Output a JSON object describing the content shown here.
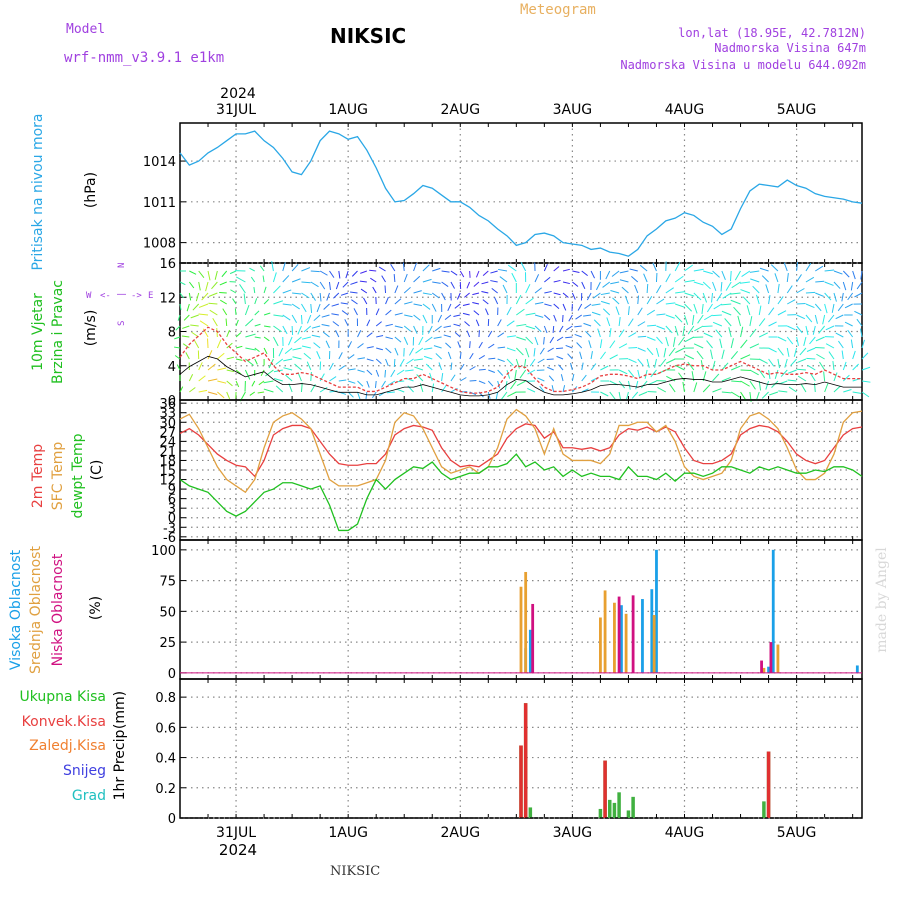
{
  "header": {
    "model_label": "Model",
    "model_name": "wrf-nmm_v3.9.1 e1km",
    "station": "NIKSIC",
    "product": "Meteogram",
    "coords": "lon,lat (18.95E, 42.7812N)",
    "elevation": "Nadmorska Visina 647m",
    "model_elevation": "Nadmorska Visina u modelu 644.092m",
    "watermark": "made by Angel",
    "footer_station": "NIKSIC"
  },
  "colors": {
    "pressure": "#2aa7e6",
    "temp2m": "#e84040",
    "sfc_temp": "#e0a040",
    "dewpoint": "#20c020",
    "cloud_high": "#1aa0e8",
    "cloud_mid": "#e8a030",
    "cloud_low": "#d01080",
    "precip_total": "#40b040",
    "precip_conv": "#e03030",
    "purple": "#a040e0",
    "orange": "#e8b060"
  },
  "time_axis": {
    "year": "2024",
    "days": [
      "31JUL",
      "1AUG",
      "2AUG",
      "3AUG",
      "4AUG",
      "5AUG"
    ],
    "day_hours": [
      12,
      36,
      60,
      84,
      108,
      132
    ],
    "range_hours": [
      0,
      146
    ]
  },
  "chart_data": [
    {
      "type": "line",
      "panel": "pressure",
      "ylabel_1": "Pritisak na nivou mora",
      "ylabel_2": "(hPa)",
      "ylim": [
        1006.5,
        1016.8
      ],
      "yticks": [
        "1008",
        "1011",
        "1014"
      ],
      "grid": true,
      "series": [
        {
          "key": "pressure",
          "x": [
            0,
            2,
            4,
            6,
            8,
            10,
            12,
            14,
            16,
            18,
            20,
            22,
            24,
            26,
            28,
            30,
            32,
            34,
            36,
            38,
            40,
            42,
            44,
            46,
            48,
            50,
            52,
            54,
            56,
            58,
            60,
            62,
            64,
            66,
            68,
            70,
            72,
            74,
            76,
            78,
            80,
            82,
            84,
            86,
            88,
            90,
            92,
            94,
            96,
            98,
            100,
            102,
            104,
            106,
            108,
            110,
            112,
            114,
            116,
            118,
            120,
            122,
            124,
            126,
            128,
            130,
            132,
            134,
            136,
            138,
            140,
            142,
            144,
            146
          ],
          "values": [
            1014.6,
            1013.7,
            1014.0,
            1014.6,
            1015.0,
            1015.5,
            1016.0,
            1016.0,
            1016.2,
            1015.5,
            1015.0,
            1014.2,
            1013.2,
            1013.0,
            1014.0,
            1015.5,
            1016.2,
            1016.0,
            1015.6,
            1015.8,
            1014.8,
            1013.5,
            1012.0,
            1011.0,
            1011.1,
            1011.6,
            1012.2,
            1012.0,
            1011.5,
            1011.0,
            1011.0,
            1010.6,
            1010.0,
            1009.6,
            1009.0,
            1008.5,
            1007.8,
            1008.0,
            1008.6,
            1008.7,
            1008.5,
            1008.0,
            1007.9,
            1007.8,
            1007.5,
            1007.6,
            1007.3,
            1007.2,
            1007.0,
            1007.5,
            1008.5,
            1009.0,
            1009.6,
            1009.8,
            1010.2,
            1010.0,
            1009.5,
            1009.2,
            1008.6,
            1009.0,
            1010.5,
            1011.8,
            1012.3,
            1012.2,
            1012.1,
            1012.6,
            1012.2,
            1012.0,
            1011.6,
            1011.4,
            1011.3,
            1011.2,
            1011.0,
            1010.9
          ]
        }
      ]
    },
    {
      "type": "line",
      "panel": "wind",
      "ylabel_1": "10m Vjetar",
      "ylabel_2": "Brzina i Pravac",
      "ylabel_3": "(m/s)",
      "compass": [
        "W",
        "<-",
        "|",
        "->",
        "E",
        "N",
        "S",
        "alpha"
      ],
      "ylim": [
        0,
        16
      ],
      "yticks": [
        "0",
        "4",
        "8",
        "12",
        "16"
      ],
      "grid": true,
      "series": [
        {
          "key": "wind_speed",
          "x": [
            0,
            2,
            4,
            6,
            8,
            10,
            12,
            14,
            16,
            18,
            20,
            22,
            24,
            26,
            28,
            30,
            32,
            34,
            36,
            38,
            40,
            42,
            44,
            46,
            48,
            50,
            52,
            54,
            56,
            58,
            60,
            62,
            64,
            66,
            68,
            70,
            72,
            74,
            76,
            78,
            80,
            82,
            84,
            86,
            88,
            90,
            92,
            94,
            96,
            98,
            100,
            102,
            104,
            106,
            108,
            110,
            112,
            114,
            116,
            118,
            120,
            122,
            124,
            126,
            128,
            130,
            132,
            134,
            136,
            138,
            140,
            142,
            144,
            146
          ],
          "values": [
            5.0,
            6.5,
            7.5,
            8.5,
            8.0,
            6.5,
            5.5,
            4.5,
            5.0,
            5.5,
            4.0,
            3.0,
            3.0,
            3.2,
            3.0,
            2.5,
            2.0,
            1.5,
            1.5,
            1.5,
            1.0,
            1.0,
            1.5,
            2.0,
            2.5,
            2.5,
            3.0,
            2.5,
            2.0,
            1.5,
            1.0,
            0.8,
            0.8,
            1.0,
            1.5,
            3.0,
            4.0,
            3.8,
            2.5,
            1.5,
            1.0,
            1.0,
            1.2,
            1.5,
            2.0,
            2.8,
            3.0,
            3.0,
            2.8,
            2.5,
            3.0,
            3.0,
            3.5,
            4.0,
            4.2,
            4.0,
            4.0,
            3.5,
            3.5,
            4.0,
            4.5,
            4.0,
            3.5,
            3.0,
            3.2,
            3.0,
            3.0,
            3.2,
            3.0,
            3.5,
            3.0,
            2.5,
            2.5,
            2.5
          ]
        }
      ]
    },
    {
      "type": "line",
      "panel": "temperature",
      "ylabel_1": "2m Temp",
      "ylabel_2": "SFC Temp",
      "ylabel_3": "dewpt Temp",
      "ylabel_4": "(C)",
      "ylim": [
        -7,
        37
      ],
      "yticks": [
        "-6",
        "-3",
        "0",
        "3",
        "6",
        "9",
        "12",
        "15",
        "18",
        "21",
        "24",
        "27",
        "30",
        "33",
        "36"
      ],
      "grid": true,
      "series": [
        {
          "key": "temp2m",
          "x": [
            0,
            2,
            4,
            6,
            8,
            10,
            12,
            14,
            16,
            18,
            20,
            22,
            24,
            26,
            28,
            30,
            32,
            34,
            36,
            38,
            40,
            42,
            44,
            46,
            48,
            50,
            52,
            54,
            56,
            58,
            60,
            62,
            64,
            66,
            68,
            70,
            72,
            74,
            76,
            78,
            80,
            82,
            84,
            86,
            88,
            90,
            92,
            94,
            96,
            98,
            100,
            102,
            104,
            106,
            108,
            110,
            112,
            114,
            116,
            118,
            120,
            122,
            124,
            126,
            128,
            130,
            132,
            134,
            136,
            138,
            140,
            142,
            144,
            146
          ],
          "values": [
            26.5,
            28.0,
            26.0,
            23.0,
            20.0,
            18.0,
            16.5,
            16.0,
            13.0,
            18.0,
            26.0,
            28.0,
            29.0,
            29.0,
            28.0,
            24.0,
            20.0,
            17.0,
            16.5,
            16.5,
            17.0,
            17.0,
            20.0,
            26.0,
            28.0,
            29.0,
            28.5,
            27.5,
            22.0,
            18.0,
            16.0,
            16.5,
            16.0,
            18.0,
            20.0,
            25.0,
            28.0,
            29.5,
            29.0,
            25.0,
            27.0,
            22.0,
            22.0,
            21.5,
            22.0,
            21.0,
            22.0,
            26.0,
            28.0,
            27.5,
            28.5,
            27.0,
            28.5,
            27.0,
            22.0,
            18.0,
            17.0,
            17.0,
            18.0,
            20.0,
            26.0,
            28.0,
            29.0,
            28.5,
            27.0,
            24.0,
            20.0,
            18.0,
            17.0,
            18.0,
            22.0,
            26.0,
            28.0,
            28.5
          ]
        },
        {
          "key": "sfc_temp",
          "x": [
            0,
            2,
            4,
            6,
            8,
            10,
            12,
            14,
            16,
            18,
            20,
            22,
            24,
            26,
            28,
            30,
            32,
            34,
            36,
            38,
            40,
            42,
            44,
            46,
            48,
            50,
            52,
            54,
            56,
            58,
            60,
            62,
            64,
            66,
            68,
            70,
            72,
            74,
            76,
            78,
            80,
            82,
            84,
            86,
            88,
            90,
            92,
            94,
            96,
            98,
            100,
            102,
            104,
            106,
            108,
            110,
            112,
            114,
            116,
            118,
            120,
            122,
            124,
            126,
            128,
            130,
            132,
            134,
            136,
            138,
            140,
            142,
            144,
            146
          ],
          "values": [
            31.0,
            32.5,
            28.0,
            22.0,
            16.0,
            12.0,
            10.0,
            8.0,
            12.0,
            22.0,
            30.0,
            32.0,
            33.0,
            31.0,
            28.0,
            20.0,
            12.0,
            10.0,
            10.0,
            10.0,
            11.0,
            12.0,
            18.0,
            30.0,
            33.0,
            32.0,
            28.0,
            22.0,
            16.0,
            14.0,
            15.0,
            16.0,
            14.0,
            16.0,
            22.0,
            31.0,
            34.0,
            32.0,
            28.0,
            20.0,
            28.0,
            20.0,
            18.0,
            18.0,
            18.0,
            17.0,
            20.0,
            29.0,
            29.0,
            30.0,
            30.0,
            27.0,
            29.0,
            24.0,
            16.0,
            13.0,
            12.0,
            13.0,
            14.0,
            18.0,
            28.0,
            32.0,
            33.0,
            31.0,
            28.0,
            22.0,
            15.0,
            12.0,
            12.0,
            14.0,
            20.0,
            30.0,
            33.0,
            33.5
          ]
        },
        {
          "key": "dewpoint",
          "x": [
            0,
            2,
            4,
            6,
            8,
            10,
            12,
            14,
            16,
            18,
            20,
            22,
            24,
            26,
            28,
            30,
            32,
            34,
            36,
            38,
            40,
            42,
            44,
            46,
            48,
            50,
            52,
            54,
            56,
            58,
            60,
            62,
            64,
            66,
            68,
            70,
            72,
            74,
            76,
            78,
            80,
            82,
            84,
            86,
            88,
            90,
            92,
            94,
            96,
            98,
            100,
            102,
            104,
            106,
            108,
            110,
            112,
            114,
            116,
            118,
            120,
            122,
            124,
            126,
            128,
            130,
            132,
            134,
            136,
            138,
            140,
            142,
            144,
            146
          ],
          "values": [
            12.0,
            10.0,
            9.0,
            8.0,
            5.0,
            2.0,
            0.5,
            2.0,
            5.0,
            8.0,
            9.0,
            11.0,
            11.0,
            10.0,
            9.0,
            10.0,
            4.0,
            -4.0,
            -4.0,
            -2.0,
            6.0,
            12.0,
            9.0,
            12.0,
            14.0,
            16.0,
            15.5,
            17.5,
            14.0,
            12.0,
            13.0,
            14.0,
            14.0,
            16.0,
            16.0,
            17.0,
            20.0,
            16.0,
            17.5,
            15.0,
            16.0,
            13.0,
            15.0,
            13.0,
            14.0,
            13.0,
            13.0,
            12.0,
            16.0,
            13.0,
            13.0,
            12.0,
            14.0,
            11.5,
            14.0,
            14.0,
            13.0,
            14.0,
            16.0,
            16.0,
            15.0,
            14.0,
            16.0,
            15.0,
            16.0,
            15.0,
            14.0,
            14.0,
            15.0,
            14.5,
            16.0,
            16.0,
            15.0,
            13.0
          ]
        }
      ]
    },
    {
      "type": "bar",
      "panel": "clouds",
      "ylabel_1": "Visoka Oblacnost",
      "ylabel_2": "Srednja Oblacnost",
      "ylabel_3": "Niska Oblacnost",
      "ylabel_4": "(%)",
      "ylim": [
        -5,
        108
      ],
      "yticks": [
        "0",
        "25",
        "50",
        "75",
        "100"
      ],
      "grid": true,
      "series": [
        {
          "name": "Visoka Oblacnost",
          "key": "cloud_high",
          "x": [
            74,
            75,
            94.5,
            99,
            101,
            102,
            126,
            127,
            145
          ],
          "values": [
            20,
            35,
            55,
            60,
            68,
            100,
            5,
            100,
            6
          ]
        },
        {
          "name": "Srednja Oblacnost",
          "key": "cloud_mid",
          "x": [
            73,
            74,
            90,
            91,
            93,
            95.5,
            101.5,
            125,
            128
          ],
          "values": [
            70,
            82,
            45,
            67,
            57,
            48,
            47,
            4,
            23
          ]
        },
        {
          "name": "Niska Oblacnost",
          "key": "cloud_low",
          "x": [
            75.5,
            94,
            97,
            124.5,
            126.5
          ],
          "values": [
            56,
            62,
            63,
            10,
            25
          ]
        }
      ]
    },
    {
      "type": "bar",
      "panel": "precipitation",
      "ylabel_1": "1hr Precip",
      "ylabel_2": "(mm)",
      "legend": [
        "Ukupna Kisa",
        "Konvek.Kisa",
        "Zaledj.Kisa",
        "Snijeg",
        "Grad"
      ],
      "ylim": [
        0,
        0.92
      ],
      "yticks": [
        "0",
        "0.2",
        "0.4",
        "0.6",
        "0.8"
      ],
      "grid": true,
      "series": [
        {
          "name": "Ukupna Kisa",
          "key": "precip_total",
          "x": [
            73,
            74,
            75,
            90,
            91,
            92,
            93,
            94,
            96,
            97,
            125,
            126
          ],
          "values": [
            0.48,
            0.76,
            0.07,
            0.06,
            0.38,
            0.12,
            0.1,
            0.17,
            0.05,
            0.14,
            0.11,
            0.44
          ]
        },
        {
          "name": "Konvek.Kisa",
          "key": "precip_conv",
          "x": [
            73,
            74,
            91,
            126
          ],
          "values": [
            0.48,
            0.76,
            0.38,
            0.44
          ]
        }
      ]
    }
  ]
}
